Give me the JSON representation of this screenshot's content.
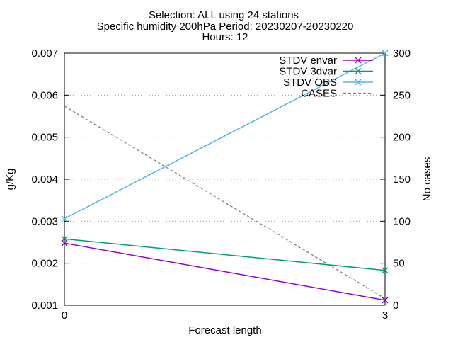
{
  "chart_data": {
    "type": "line",
    "title_lines": [
      "Selection: ALL using    24 stations",
      "Specific humidity 200hPa   Period: 20230207-20230220",
      "Hours: 12"
    ],
    "xlabel": "Forecast length",
    "ylabel": "g/Kg",
    "y2label": "No cases",
    "x": [
      0,
      3
    ],
    "xlim": [
      0,
      3
    ],
    "ylim": [
      0.001,
      0.007
    ],
    "y2lim": [
      0,
      300
    ],
    "xticks": [
      "0",
      "3"
    ],
    "yticks": [
      "0.001",
      "0.002",
      "0.003",
      "0.004",
      "0.005",
      "0.006",
      "0.007"
    ],
    "y2ticks": [
      "0",
      "50",
      "100",
      "150",
      "200",
      "250",
      "300"
    ],
    "grid": "horizontal dotted",
    "legend_position": "top-right",
    "series": [
      {
        "name": "STDV envar",
        "values": [
          0.00248,
          0.00112
        ],
        "axis": "y",
        "color": "#9400d3",
        "style": "solid",
        "marker": "x"
      },
      {
        "name": "STDV 3dvar",
        "values": [
          0.00258,
          0.00183
        ],
        "axis": "y",
        "color": "#009e73",
        "style": "solid",
        "marker": "x"
      },
      {
        "name": "STDV OBS",
        "values": [
          0.00306,
          0.007
        ],
        "axis": "y",
        "color": "#56b4e9",
        "style": "solid",
        "marker": "x"
      },
      {
        "name": "CASES",
        "values": [
          237,
          8
        ],
        "axis": "y2",
        "color": "#808080",
        "style": "dashed",
        "marker": "none"
      }
    ]
  }
}
